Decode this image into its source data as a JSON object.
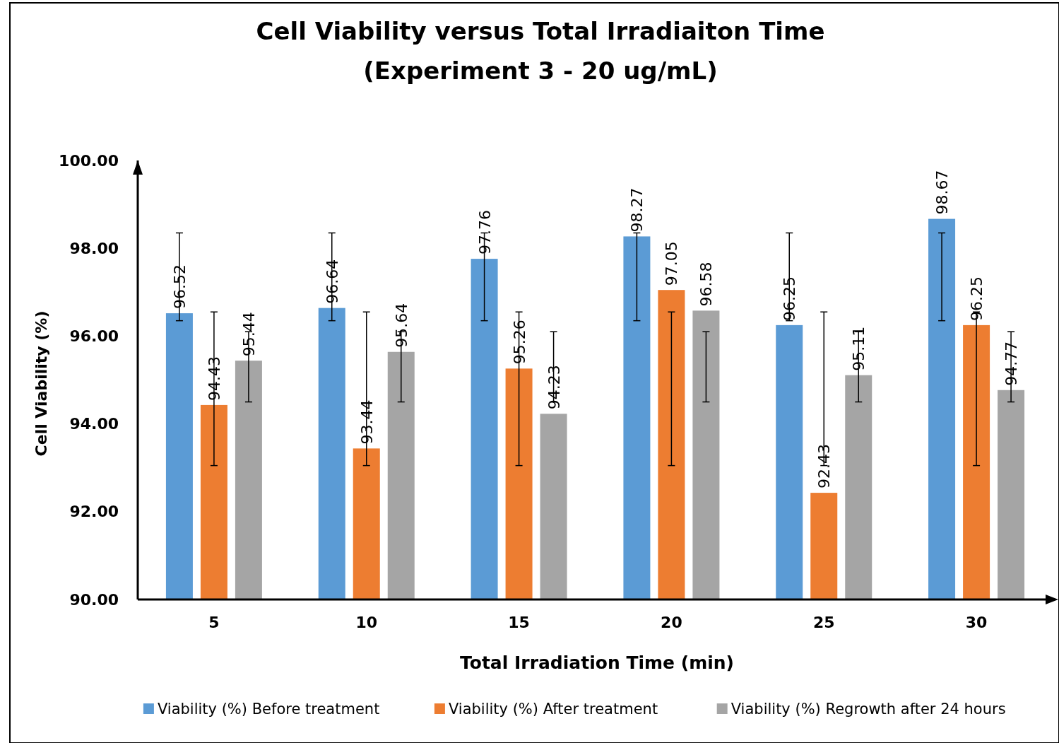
{
  "chart_data": {
    "type": "bar",
    "title": "Cell Viability versus Total Irradiaiton Time",
    "subtitle": "(Experiment 3 - 20 ug/mL)",
    "xlabel": "Total Irradiation Time (min)",
    "ylabel": "Cell Viability (%)",
    "categories": [
      "5",
      "10",
      "15",
      "20",
      "25",
      "30"
    ],
    "series": [
      {
        "name": "Viability (%) Before treatment",
        "color": "#5b9bd5",
        "values": [
          96.52,
          96.64,
          97.76,
          98.27,
          96.25,
          98.67
        ],
        "errors": [
          [
            96.35,
            98.35
          ],
          [
            96.35,
            98.35
          ],
          [
            96.35,
            98.35
          ],
          [
            96.35,
            98.35
          ],
          [
            96.35,
            98.35
          ],
          [
            96.35,
            98.35
          ]
        ]
      },
      {
        "name": "Viability (%) After treatment",
        "color": "#ed7d31",
        "values": [
          94.43,
          93.44,
          95.26,
          97.05,
          92.43,
          96.25
        ],
        "errors": [
          [
            93.05,
            96.55
          ],
          [
            93.05,
            96.55
          ],
          [
            93.05,
            96.55
          ],
          [
            93.05,
            96.55
          ],
          [
            93.05,
            96.55
          ],
          [
            93.05,
            96.55
          ]
        ]
      },
      {
        "name": "Viability (%) Regrowth after 24 hours",
        "color": "#a5a5a5",
        "values": [
          95.44,
          95.64,
          94.23,
          96.58,
          95.11,
          94.77
        ],
        "errors": [
          [
            94.5,
            96.1
          ],
          [
            94.5,
            96.1
          ],
          [
            94.5,
            96.1
          ],
          [
            94.5,
            96.1
          ],
          [
            94.5,
            96.1
          ],
          [
            94.5,
            96.1
          ]
        ]
      }
    ],
    "ylim": [
      90,
      100
    ],
    "yticks": [
      {
        "value": 90,
        "label": "90.00"
      },
      {
        "value": 92,
        "label": "92.00"
      },
      {
        "value": 94,
        "label": "94.00"
      },
      {
        "value": 96,
        "label": "96.00"
      },
      {
        "value": 98,
        "label": "98.00"
      },
      {
        "value": 100,
        "label": "100.00"
      }
    ],
    "data_labels": true,
    "legend": "bottom",
    "grid": false
  }
}
